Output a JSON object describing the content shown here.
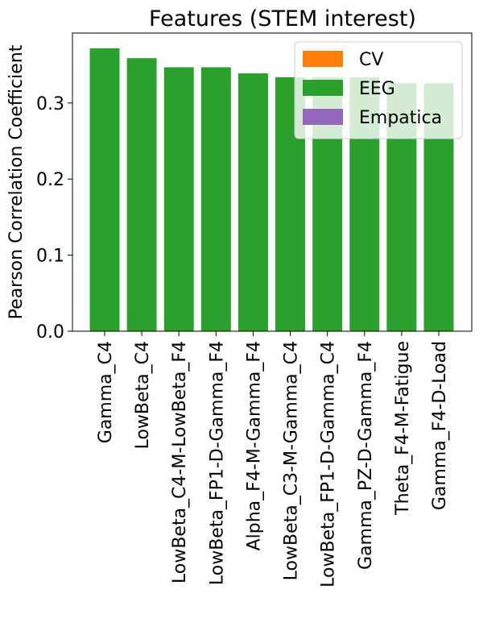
{
  "chart_data": {
    "type": "bar",
    "title": "Features (STEM interest)",
    "xlabel": "",
    "ylabel": "Pearson Correlation Coefficient",
    "ylim": [
      0,
      0.392
    ],
    "yticks": [
      0.0,
      0.1,
      0.2,
      0.3
    ],
    "ytick_labels": [
      "0.0",
      "0.1",
      "0.2",
      "0.3"
    ],
    "grid": false,
    "legend_position": "top-right",
    "categories": [
      "Gamma_C4",
      "LowBeta_C4",
      "LowBeta_C4-M-LowBeta_F4",
      "LowBeta_FP1-D-Gamma_F4",
      "Alpha_F4-M-Gamma_F4",
      "LowBeta_C3-M-Gamma_C4",
      "LowBeta_FP1-D-Gamma_C4",
      "Gamma_PZ-D-Gamma_F4",
      "Theta_F4-M-Fatigue",
      "Gamma_F4-D-Load"
    ],
    "values": [
      0.372,
      0.359,
      0.347,
      0.347,
      0.339,
      0.334,
      0.334,
      0.334,
      0.326,
      0.326
    ],
    "bar_color": "#2ca02c",
    "legend": [
      {
        "label": "CV",
        "color": "#ff7f0e"
      },
      {
        "label": "EEG",
        "color": "#2ca02c"
      },
      {
        "label": "Empatica",
        "color": "#9467bd"
      }
    ]
  }
}
